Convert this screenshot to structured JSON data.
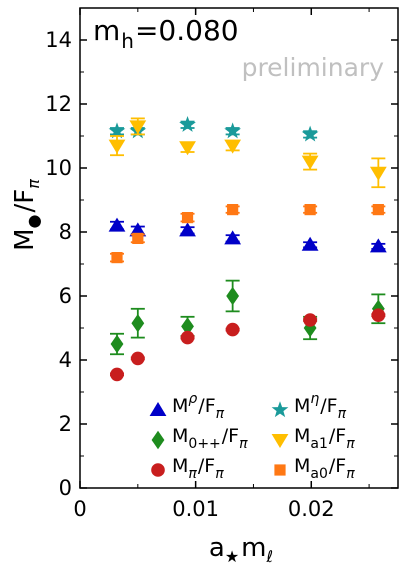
{
  "chart_data": {
    "type": "scatter",
    "annotation": "m_h=0.080",
    "annotation_main": "m",
    "annotation_sub": "h",
    "annotation_value": "=0.080",
    "watermark": "preliminary",
    "xlabel_main": "a",
    "xlabel_star": "★",
    "xlabel_m": "m",
    "xlabel_sub": "ℓ",
    "ylabel_main": "M",
    "ylabel_bullet": "●",
    "ylabel_slash": "/F",
    "ylabel_sub": "π",
    "xlim": [
      0,
      0.0275
    ],
    "ylim": [
      0,
      15
    ],
    "xticks": [
      0,
      0.01,
      0.02
    ],
    "xtick_labels": [
      "0",
      "0.01",
      "0.02"
    ],
    "yticks": [
      0,
      2,
      4,
      6,
      8,
      10,
      12,
      14
    ],
    "ytick_labels": [
      "0",
      "2",
      "4",
      "6",
      "8",
      "10",
      "12",
      "14"
    ],
    "colors": {
      "rho": "#0000c8",
      "eta": "#1a9a9a",
      "sigma": "#1e8c1e",
      "a1": "#ffbe00",
      "pi": "#c81e1e",
      "a0": "#ff7814"
    },
    "series": [
      {
        "key": "rho",
        "marker": "triangle-up",
        "color": "#0000c8",
        "legend_main": "M",
        "legend_sub": "ρ",
        "legend_tail": "/F",
        "legend_tail_sub": "π",
        "x": [
          0.0032,
          0.005,
          0.0093,
          0.0132,
          0.0199,
          0.0258
        ],
        "y": [
          8.2,
          8.05,
          8.05,
          7.8,
          7.6,
          7.55
        ],
        "err": [
          0.12,
          0.12,
          0.1,
          0.1,
          0.08,
          0.08
        ]
      },
      {
        "key": "eta",
        "marker": "star",
        "color": "#1a9a9a",
        "legend_main": "M",
        "legend_sub": "η",
        "legend_tail": "/F",
        "legend_tail_sub": "π",
        "x": [
          0.0032,
          0.005,
          0.0093,
          0.0132,
          0.0199
        ],
        "y": [
          11.15,
          11.15,
          11.35,
          11.15,
          11.05
        ],
        "err": [
          0.1,
          0.1,
          0.1,
          0.1,
          0.1
        ]
      },
      {
        "key": "sigma",
        "marker": "diamond",
        "color": "#1e8c1e",
        "legend_main": "M",
        "legend_sub": "0++",
        "legend_tail": "/F",
        "legend_tail_sub": "π",
        "x": [
          0.0032,
          0.005,
          0.0093,
          0.0132,
          0.0199,
          0.0258
        ],
        "y": [
          4.5,
          5.15,
          5.05,
          6.0,
          5.0,
          5.6
        ],
        "err": [
          0.32,
          0.45,
          0.3,
          0.48,
          0.35,
          0.45
        ]
      },
      {
        "key": "a1",
        "marker": "triangle-down",
        "color": "#ffbe00",
        "legend_main": "M",
        "legend_sub": "a1",
        "legend_tail": "/F",
        "legend_tail_sub": "π",
        "x": [
          0.0032,
          0.005,
          0.0093,
          0.0132,
          0.0199,
          0.0258
        ],
        "y": [
          10.7,
          11.3,
          10.65,
          10.7,
          10.2,
          9.85
        ],
        "err": [
          0.3,
          0.25,
          0.15,
          0.15,
          0.25,
          0.45
        ]
      },
      {
        "key": "pi",
        "marker": "circle",
        "color": "#c81e1e",
        "legend_main": "M",
        "legend_sub": "π",
        "legend_tail": "/F",
        "legend_tail_sub": "π",
        "x": [
          0.0032,
          0.005,
          0.0093,
          0.0132,
          0.0199,
          0.0258
        ],
        "y": [
          3.55,
          4.05,
          4.7,
          4.95,
          5.25,
          5.4
        ],
        "err": [
          0.03,
          0.03,
          0.03,
          0.03,
          0.03,
          0.03
        ]
      },
      {
        "key": "a0",
        "marker": "square",
        "color": "#ff7814",
        "legend_main": "M",
        "legend_sub": "a0",
        "legend_tail": "/F",
        "legend_tail_sub": "π",
        "x": [
          0.0032,
          0.005,
          0.0093,
          0.0132,
          0.0199,
          0.0258
        ],
        "y": [
          7.2,
          7.8,
          8.45,
          8.7,
          8.7,
          8.7
        ],
        "err": [
          0.12,
          0.12,
          0.12,
          0.1,
          0.1,
          0.1
        ]
      }
    ],
    "legend_order": [
      "rho",
      "eta",
      "sigma",
      "a1",
      "pi",
      "a0"
    ]
  }
}
